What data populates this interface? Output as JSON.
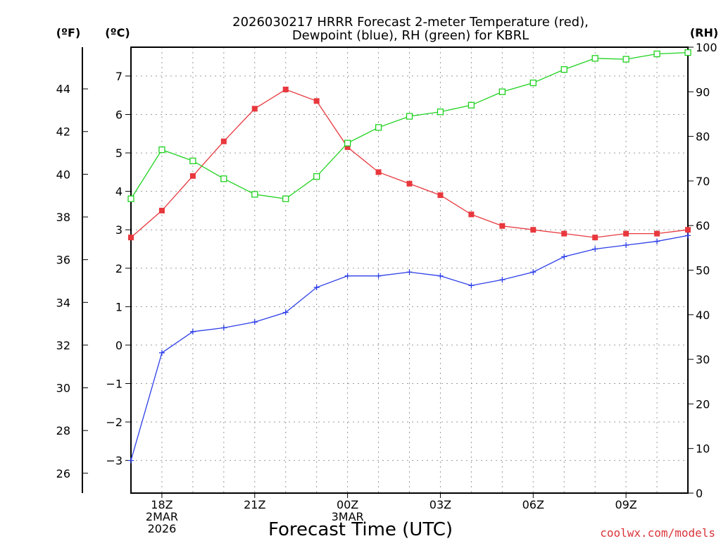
{
  "title_lines": [
    "2026030217 HRRR Forecast 2-meter Temperature (red),",
    "Dewpoint (blue), RH (green) for KBRL"
  ],
  "units": {
    "f": "(ºF)",
    "c": "(ºC)",
    "rh": "(RH)"
  },
  "xlabel": "Forecast Time (UTC)",
  "credit": "coolwx.com/models",
  "colors": {
    "temp": "#e8383d",
    "dew": "#2d3fe8",
    "rh": "#1fd21f",
    "credit": "#d9343a"
  },
  "chart_data": {
    "type": "line",
    "title": "2026030217 HRRR Forecast 2-meter Temperature (red), Dewpoint (blue), RH (green) for KBRL",
    "xlabel": "Forecast Time (UTC)",
    "x_hours": [
      17,
      18,
      19,
      20,
      21,
      22,
      23,
      24,
      25,
      26,
      27,
      28,
      29,
      30,
      31,
      32,
      33,
      34,
      35
    ],
    "x_ticks": [
      {
        "hour": 18,
        "lines": [
          "18Z",
          "2MAR",
          "2026"
        ]
      },
      {
        "hour": 21,
        "lines": [
          "21Z"
        ]
      },
      {
        "hour": 24,
        "lines": [
          "00Z",
          "3MAR"
        ]
      },
      {
        "hour": 27,
        "lines": [
          "03Z"
        ]
      },
      {
        "hour": 30,
        "lines": [
          "06Z"
        ]
      },
      {
        "hour": 33,
        "lines": [
          "09Z"
        ]
      }
    ],
    "xlim": [
      17,
      35
    ],
    "y_celsius": {
      "range": [
        -3.85,
        7.75
      ],
      "ticks": [
        -3,
        -2,
        -1,
        0,
        1,
        2,
        3,
        4,
        5,
        6,
        7
      ]
    },
    "y_fahrenheit": {
      "ticks": [
        26,
        28,
        30,
        32,
        34,
        36,
        38,
        40,
        42,
        44
      ]
    },
    "y_rh": {
      "range": [
        0,
        100
      ],
      "ticks": [
        0,
        10,
        20,
        30,
        40,
        50,
        60,
        70,
        80,
        90,
        100
      ]
    },
    "series": [
      {
        "name": "Temperature (°C)",
        "color_key": "temp",
        "marker": "filled-square",
        "axis": "celsius",
        "values": [
          2.8,
          3.5,
          4.4,
          5.3,
          6.15,
          6.65,
          6.35,
          5.15,
          4.5,
          4.2,
          3.9,
          3.4,
          3.1,
          3.0,
          2.9,
          2.8,
          2.9,
          2.9,
          3.0
        ]
      },
      {
        "name": "Dewpoint (°C)",
        "color_key": "dew",
        "marker": "plus",
        "axis": "celsius",
        "values": [
          -3.0,
          -0.2,
          0.35,
          0.45,
          0.6,
          0.85,
          1.5,
          1.8,
          1.8,
          1.9,
          1.8,
          1.55,
          1.7,
          1.9,
          2.3,
          2.5,
          2.6,
          2.7,
          2.85
        ]
      },
      {
        "name": "RH (%)",
        "color_key": "rh",
        "marker": "open-square",
        "axis": "rh",
        "values": [
          66,
          77,
          74.5,
          70.5,
          67,
          66,
          71,
          78.5,
          82,
          84.5,
          85.5,
          87,
          90,
          92,
          95,
          97.5,
          97.3,
          98.5,
          98.8
        ]
      }
    ]
  }
}
